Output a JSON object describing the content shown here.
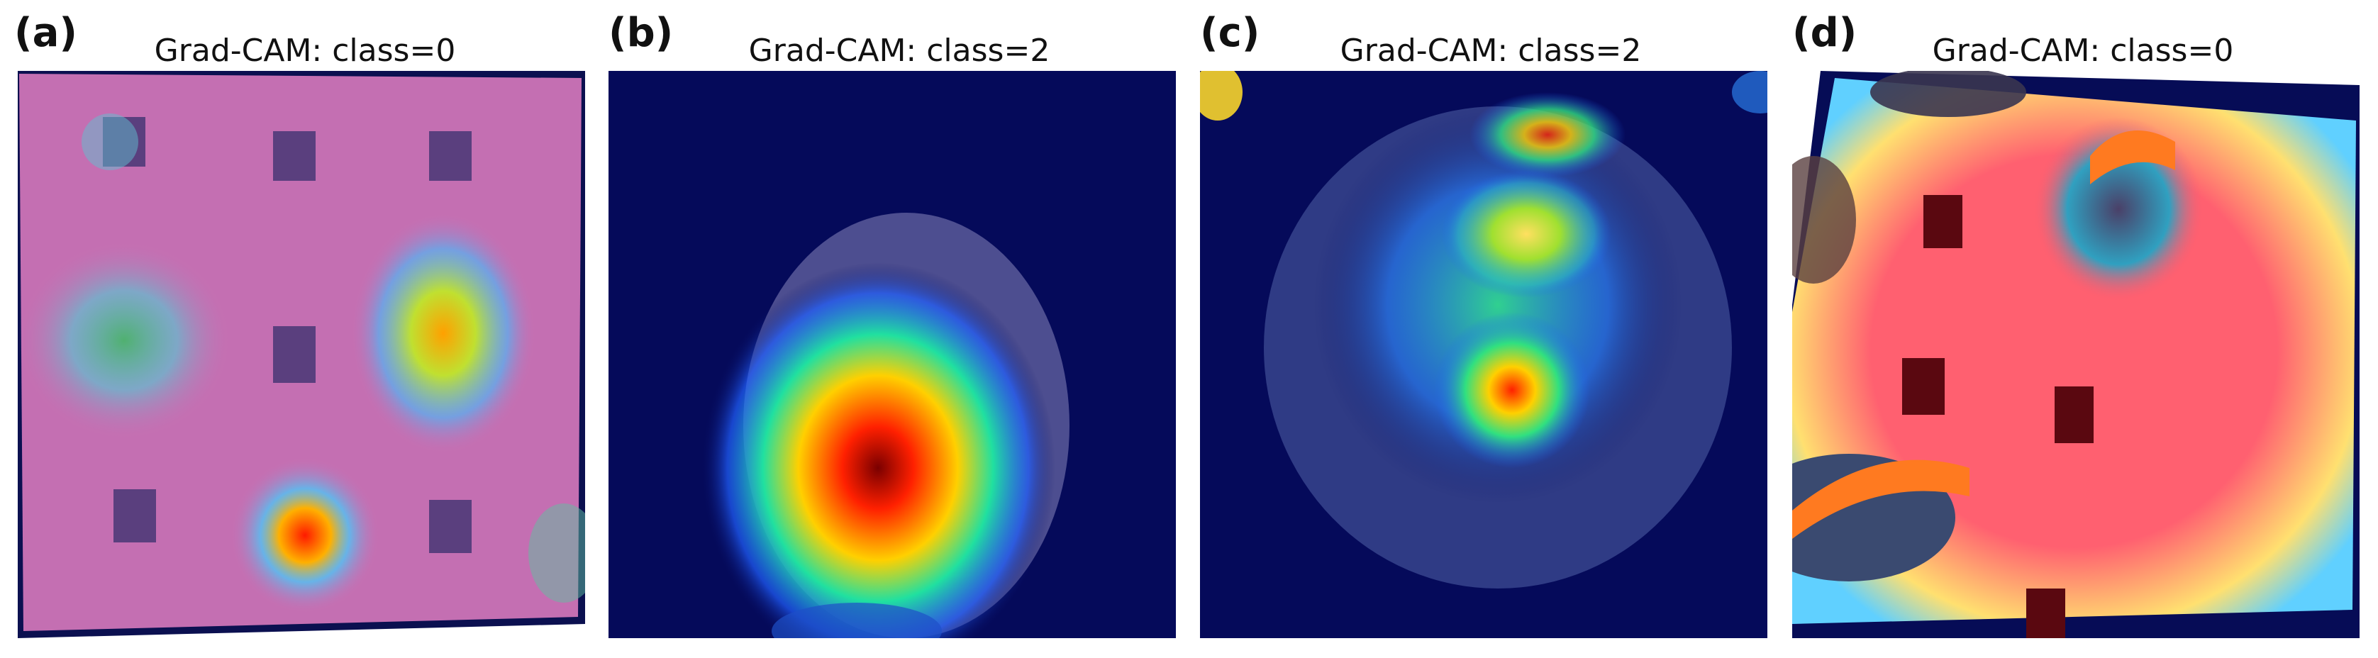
{
  "figure": {
    "panels": [
      {
        "label": "(a)",
        "title": "Grad-CAM: class=0"
      },
      {
        "label": "(b)",
        "title": "Grad-CAM: class=2"
      },
      {
        "label": "(c)",
        "title": "Grad-CAM: class=2"
      },
      {
        "label": "(d)",
        "title": "Grad-CAM: class=0"
      }
    ]
  },
  "colors": {
    "background_dark": "#050a5a",
    "pink_overlay": "#c873b4",
    "red_overlay": "#ff5a6e",
    "hot_red": "#ff2000",
    "hot_yellow": "#ffe000",
    "cool_cyan": "#40e0ff"
  }
}
